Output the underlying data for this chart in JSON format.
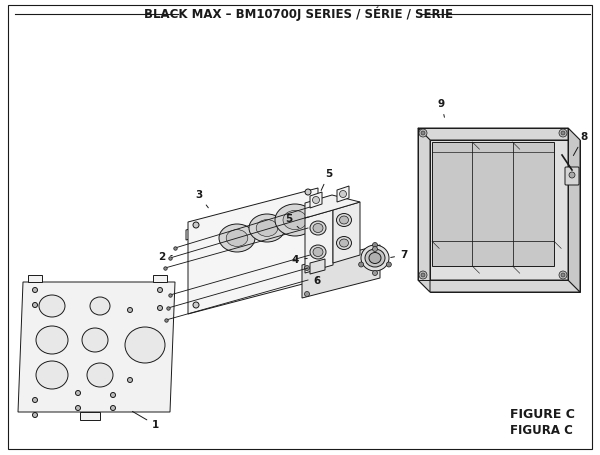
{
  "title": "BLACK MAX – BM10700J SERIES / SÉRIE / SERIE",
  "bg_color": "#ffffff",
  "figure_label": "FIGURE C",
  "figura_label": "FIGURA C",
  "lw": 0.7,
  "col": "#1a1a1a",
  "label_fs": 7.5,
  "title_fs": 8.5,
  "figlabel_fs": 9
}
